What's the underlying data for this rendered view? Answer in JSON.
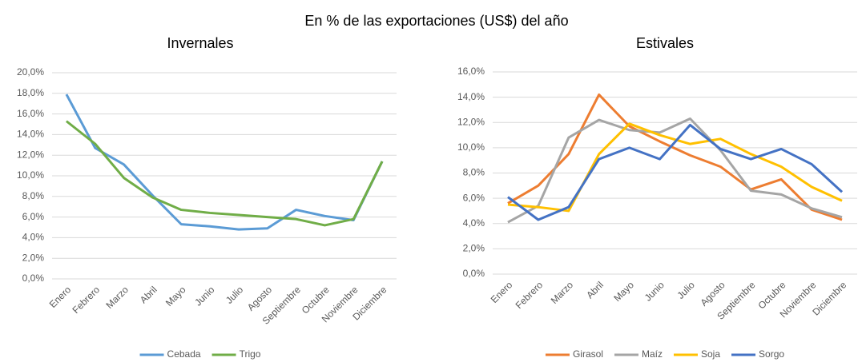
{
  "title": "En % de las exportaciones (US$) del año",
  "chart_data": [
    {
      "type": "line",
      "title": "Invernales",
      "categories": [
        "Enero",
        "Febrero",
        "Marzo",
        "Abril",
        "Mayo",
        "Junio",
        "Julio",
        "Agosto",
        "Septiembre",
        "Octubre",
        "Noviembre",
        "Diciembre"
      ],
      "series": [
        {
          "name": "Cebada",
          "color": "#5b9bd5",
          "values": [
            17.9,
            12.7,
            11.1,
            8.1,
            5.3,
            5.1,
            4.8,
            4.9,
            6.7,
            6.1,
            5.7,
            11.4
          ]
        },
        {
          "name": "Trigo",
          "color": "#70ad47",
          "values": [
            15.3,
            13.1,
            9.8,
            7.9,
            6.7,
            6.4,
            6.2,
            6.0,
            5.8,
            5.2,
            5.8,
            11.4
          ]
        }
      ],
      "ylim": [
        0,
        20
      ],
      "yticks": [
        {
          "value": 0,
          "label": "0,0%"
        },
        {
          "value": 2,
          "label": "2,0%"
        },
        {
          "value": 4,
          "label": "4,0%"
        },
        {
          "value": 6,
          "label": "6,0%"
        },
        {
          "value": 8,
          "label": "8,0%"
        },
        {
          "value": 10,
          "label": "10,0%"
        },
        {
          "value": 12,
          "label": "12,0%"
        },
        {
          "value": 14,
          "label": "14,0%"
        },
        {
          "value": 16,
          "label": "16,0%"
        },
        {
          "value": 18,
          "label": "18,0%"
        },
        {
          "value": 20,
          "label": "20,0%"
        }
      ],
      "grid": true,
      "legend": "bottom"
    },
    {
      "type": "line",
      "title": "Estivales",
      "categories": [
        "Enero",
        "Febrero",
        "Marzo",
        "Abril",
        "Mayo",
        "Junio",
        "Julio",
        "Agosto",
        "Septiembre",
        "Octubre",
        "Noviembre",
        "Diciembre"
      ],
      "series": [
        {
          "name": "Girasol",
          "color": "#ed7d31",
          "values": [
            5.6,
            7.0,
            9.5,
            14.2,
            11.7,
            10.5,
            9.4,
            8.5,
            6.7,
            7.5,
            5.1,
            4.3
          ]
        },
        {
          "name": "Maíz",
          "color": "#a5a5a5",
          "values": [
            4.1,
            5.4,
            10.8,
            12.2,
            11.4,
            11.2,
            12.3,
            9.8,
            6.6,
            6.3,
            5.2,
            4.5
          ]
        },
        {
          "name": "Soja",
          "color": "#ffc000",
          "values": [
            5.5,
            5.3,
            5.0,
            9.5,
            11.9,
            11.0,
            10.3,
            10.7,
            9.5,
            8.5,
            6.9,
            5.8
          ]
        },
        {
          "name": "Sorgo",
          "color": "#4472c4",
          "values": [
            6.1,
            4.3,
            5.3,
            9.1,
            10.0,
            9.1,
            11.8,
            9.9,
            9.1,
            9.9,
            8.7,
            6.5
          ]
        }
      ],
      "ylim": [
        0,
        16
      ],
      "yticks": [
        {
          "value": 0,
          "label": "0,0%"
        },
        {
          "value": 2,
          "label": "2,0%"
        },
        {
          "value": 4,
          "label": "4,0%"
        },
        {
          "value": 6,
          "label": "6,0%"
        },
        {
          "value": 8,
          "label": "8,0%"
        },
        {
          "value": 10,
          "label": "10,0%"
        },
        {
          "value": 12,
          "label": "12,0%"
        },
        {
          "value": 14,
          "label": "14,0%"
        },
        {
          "value": 16,
          "label": "16,0%"
        }
      ],
      "grid": true,
      "legend": "bottom"
    }
  ]
}
